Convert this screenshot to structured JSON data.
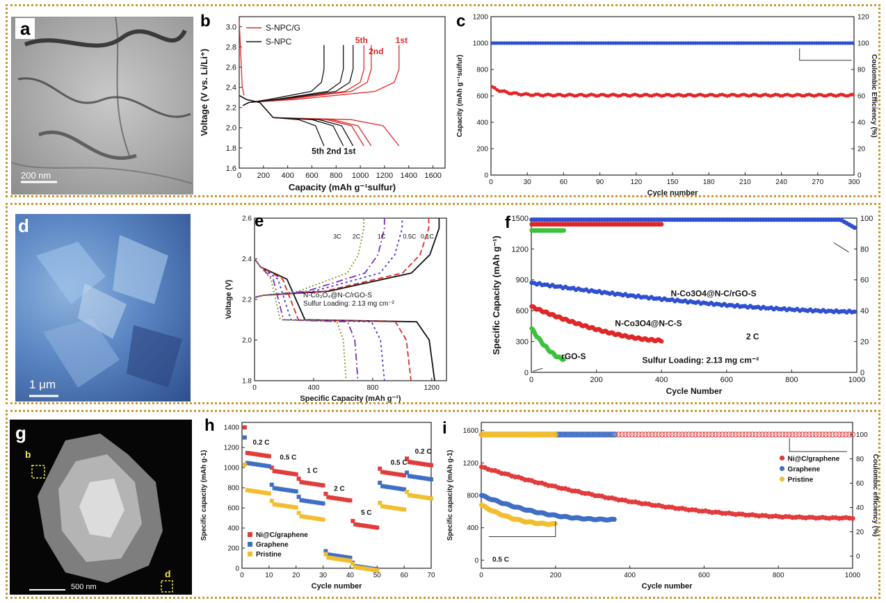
{
  "colors": {
    "red": "#e02727",
    "black": "#111111",
    "blue": "#2f4fd0",
    "green": "#3cc23c",
    "ired": "#e23b3b",
    "iblue": "#3f6fc4",
    "iyellow": "#f2bd2f",
    "border": "#c79a2c"
  },
  "panels": {
    "a": {
      "letter": "a",
      "scalebar": "200 nm"
    },
    "d": {
      "letter": "d",
      "scalebar": "1 μm"
    },
    "g": {
      "letter": "g",
      "scalebar": "500 nm",
      "box_b": "b",
      "box_d": "d"
    }
  },
  "chart_data": [
    {
      "id": "b",
      "type": "line",
      "panel_letter": "b",
      "xlabel": "Capacity (mAh g⁻¹sulfur)",
      "ylabel": "Voltage (V vs. Li/Li⁺)",
      "xlim": [
        0,
        1700
      ],
      "ylim": [
        1.6,
        3.1
      ],
      "xticks": [
        0,
        200,
        400,
        600,
        800,
        1000,
        1200,
        1400,
        1600
      ],
      "yticks": [
        1.6,
        1.8,
        2.0,
        2.2,
        2.4,
        2.6,
        2.8,
        3.0
      ],
      "legend": [
        {
          "name": "S-NPC/G",
          "color": "#e02727"
        },
        {
          "name": "S-NPC",
          "color": "#111111"
        }
      ],
      "annotations": [
        {
          "text": "1st",
          "x": 1340,
          "y": 2.84,
          "color": "#e02727"
        },
        {
          "text": "2nd",
          "x": 1130,
          "y": 2.73,
          "color": "#e02727"
        },
        {
          "text": "5th",
          "x": 1010,
          "y": 2.84,
          "color": "#e02727"
        },
        {
          "text": "5th  2nd 1st",
          "x": 780,
          "y": 1.74,
          "color": "#111111"
        }
      ],
      "series": [
        {
          "name": "S-NPC/G",
          "color": "#e02727",
          "ends": [
            1320,
            1090,
            1030
          ]
        },
        {
          "name": "S-NPC",
          "color": "#111111",
          "ends": [
            940,
            860,
            700
          ]
        }
      ]
    },
    {
      "id": "c",
      "type": "scatter",
      "panel_letter": "c",
      "xlabel": "Cycle number",
      "ylabel": "Capacity (mAh g⁻¹sulfur)",
      "y2label": "Coulombic Efficiency (%)",
      "xlim": [
        0,
        300
      ],
      "ylim": [
        0,
        1200
      ],
      "y2lim": [
        0,
        120
      ],
      "xticks": [
        0,
        30,
        60,
        90,
        120,
        150,
        180,
        210,
        240,
        270,
        300
      ],
      "yticks": [
        0,
        200,
        400,
        600,
        800,
        1000,
        1200
      ],
      "y2ticks": [
        0,
        20,
        40,
        60,
        80,
        100,
        120
      ],
      "series": [
        {
          "name": "capacity",
          "color": "#e02727",
          "start": 670,
          "plateau": 605
        },
        {
          "name": "coulombic efficiency",
          "color": "#2f4fd0",
          "axis": "y2",
          "value": 100
        }
      ]
    },
    {
      "id": "e",
      "type": "line",
      "panel_letter": "e",
      "xlabel": "Specific Capacity (mAh g⁻¹)",
      "ylabel": "Voltage (V)",
      "xlim": [
        0,
        1300
      ],
      "ylim": [
        1.8,
        2.6
      ],
      "xticks": [
        0,
        400,
        800,
        1200
      ],
      "yticks": [
        1.8,
        2.0,
        2.2,
        2.4,
        2.6
      ],
      "annotations": [
        {
          "text": "N-Co₃O₄@N-C/rGO-S",
          "x": 330,
          "y": 2.21
        },
        {
          "text": "Sulfur Loading: 2.13 mg cm⁻²",
          "x": 330,
          "y": 2.17
        }
      ],
      "rate_labels": [
        {
          "text": "3C",
          "x": 560
        },
        {
          "text": "2C",
          "x": 690
        },
        {
          "text": "1C",
          "x": 860
        },
        {
          "text": "0.5C",
          "x": 1050
        },
        {
          "text": "0.1C",
          "x": 1170
        }
      ],
      "series": [
        {
          "name": "0.1C",
          "color": "#111111",
          "dash": "",
          "ends": [
            1250,
            1220
          ]
        },
        {
          "name": "0.5C",
          "color": "#e02727",
          "dash": "8,4",
          "ends": [
            1180,
            1060
          ]
        },
        {
          "name": "1C",
          "color": "#3a3ad8",
          "dash": "3,4",
          "ends": [
            1000,
            880
          ]
        },
        {
          "name": "2C",
          "color": "#7a2ab8",
          "dash": "10,4,2,4",
          "ends": [
            880,
            700
          ]
        },
        {
          "name": "3C",
          "color": "#7a9a1a",
          "dash": "2,3",
          "ends": [
            740,
            620
          ]
        }
      ]
    },
    {
      "id": "f",
      "type": "scatter",
      "panel_letter": "f",
      "xlabel": "Cycle Number",
      "ylabel": "Specific Capacity (mAh g⁻¹)",
      "xlim": [
        0,
        1000
      ],
      "ylim": [
        0,
        1500
      ],
      "y2lim": [
        0,
        100
      ],
      "xticks": [
        0,
        200,
        400,
        600,
        800,
        1000
      ],
      "yticks": [
        0,
        300,
        600,
        900,
        1200,
        1500
      ],
      "y2ticks": [
        0,
        20,
        40,
        60,
        80,
        100
      ],
      "annotations": [
        {
          "text": "N-Co3O4@N-C/rGO-S",
          "x": 560,
          "y": 740
        },
        {
          "text": "N-Co3O4@N-C-S",
          "x": 360,
          "y": 450
        },
        {
          "text": "2 C",
          "x": 680,
          "y": 320
        },
        {
          "text": "rGO-S",
          "x": 130,
          "y": 130
        },
        {
          "text": "Sulfur Loading: 2.13 mg cm⁻²",
          "x": 520,
          "y": 90
        }
      ],
      "series": [
        {
          "name": "N-Co3O4@N-C/rGO-S",
          "color": "#2f4fd0",
          "n": 1000,
          "start": 870,
          "end": 590
        },
        {
          "name": "N-Co3O4@N-C-S",
          "color": "#e02727",
          "n": 400,
          "start": 640,
          "end": 310
        },
        {
          "name": "rGO-S",
          "color": "#3cc23c",
          "n": 100,
          "start": 430,
          "end": 130
        }
      ]
    },
    {
      "id": "h",
      "type": "scatter",
      "panel_letter": "h",
      "xlabel": "Cycle number",
      "ylabel": "Specific capacity (mAh g-1)",
      "xlim": [
        0,
        70
      ],
      "ylim": [
        0,
        1450
      ],
      "xticks": [
        0,
        10,
        20,
        30,
        40,
        50,
        60,
        70
      ],
      "yticks": [
        0,
        200,
        400,
        600,
        800,
        1000,
        1200,
        1400
      ],
      "rate_labels": [
        {
          "text": "0.2 C",
          "x": 4,
          "y": 1230
        },
        {
          "text": "0.5 C",
          "x": 14,
          "y": 1080
        },
        {
          "text": "1 C",
          "x": 24,
          "y": 950
        },
        {
          "text": "2 C",
          "x": 34,
          "y": 770
        },
        {
          "text": "5 C",
          "x": 44,
          "y": 530
        },
        {
          "text": "0.5 C",
          "x": 55,
          "y": 1030
        },
        {
          "text": "0.2 C",
          "x": 64,
          "y": 1140
        }
      ],
      "legend": [
        {
          "name": "Ni@C/graphene",
          "color": "#e23b3b"
        },
        {
          "name": "Graphene",
          "color": "#3f6fc4"
        },
        {
          "name": "Pristine",
          "color": "#f2bd2f"
        }
      ],
      "series": [
        {
          "name": "Ni@C/graphene",
          "color": "#e23b3b",
          "levels": [
            1150,
            970,
            860,
            710,
            440,
            960,
            1060
          ]
        },
        {
          "name": "Graphene",
          "color": "#3f6fc4",
          "levels": [
            1050,
            800,
            680,
            140,
            25,
            820,
            920
          ]
        },
        {
          "name": "Pristine",
          "color": "#f2bd2f",
          "levels": [
            780,
            640,
            520,
            110,
            15,
            620,
            730
          ]
        }
      ]
    },
    {
      "id": "i",
      "type": "scatter",
      "panel_letter": "i",
      "xlabel": "Cycle number",
      "ylabel": "Specific capacity (mAh g-1)",
      "y2label": "Coulombic efficiency (%)",
      "xlim": [
        0,
        1000
      ],
      "ylim": [
        -100,
        1700
      ],
      "y2lim": [
        -10,
        110
      ],
      "xticks": [
        0,
        200,
        400,
        600,
        800,
        1000
      ],
      "yticks": [
        0,
        400,
        800,
        1200,
        1600
      ],
      "y2ticks": [
        0,
        20,
        40,
        60,
        80,
        100
      ],
      "annotations": [
        {
          "text": "0.5 C",
          "x": 30,
          "y": -20
        }
      ],
      "legend": [
        {
          "name": "Ni@C/graphene",
          "color": "#e23b3b"
        },
        {
          "name": "Graphene",
          "color": "#3f6fc4"
        },
        {
          "name": "Pristine",
          "color": "#f2bd2f"
        }
      ],
      "series": [
        {
          "name": "Ni@C/graphene",
          "color": "#e23b3b",
          "n": 1000,
          "start": 1150,
          "end": 520
        },
        {
          "name": "Graphene",
          "color": "#3f6fc4",
          "n": 360,
          "start": 800,
          "end": 500
        },
        {
          "name": "Pristine",
          "color": "#f2bd2f",
          "n": 200,
          "start": 680,
          "end": 445
        }
      ]
    }
  ]
}
